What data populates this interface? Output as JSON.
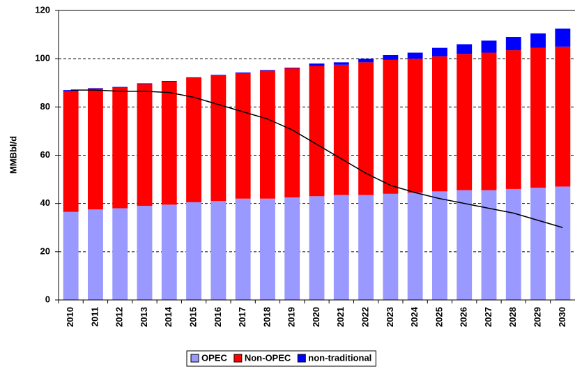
{
  "chart_data": {
    "type": "bar",
    "stacked": true,
    "y_label": "MMBbl/d",
    "categories": [
      "2010",
      "2011",
      "2012",
      "2013",
      "2014",
      "2015",
      "2016",
      "2017",
      "2018",
      "2019",
      "2020",
      "2021",
      "2022",
      "2023",
      "2024",
      "2025",
      "2026",
      "2027",
      "2028",
      "2029",
      "2030"
    ],
    "series": [
      {
        "name": "OPEC",
        "color": "#9999ff",
        "values": [
          36.5,
          37.5,
          38,
          39,
          39.5,
          40.5,
          41,
          42,
          42,
          42.5,
          43,
          43.5,
          43.5,
          44,
          44.5,
          45,
          45.5,
          45.5,
          46,
          46.5,
          47
        ]
      },
      {
        "name": "Non-OPEC",
        "color": "#ff0000",
        "values": [
          50,
          50,
          50,
          50.5,
          51,
          51.5,
          52,
          52,
          53,
          53.5,
          54,
          54,
          55,
          55.5,
          55.5,
          56,
          56.5,
          57,
          57.5,
          58,
          58
        ]
      },
      {
        "name": "non-traditional",
        "color": "#0000ff",
        "values": [
          0.5,
          0.3,
          0.3,
          0.3,
          0.3,
          0.3,
          0.3,
          0.3,
          0.3,
          0.3,
          1,
          1,
          1.5,
          2,
          2.5,
          3.5,
          4,
          5,
          5.5,
          6,
          7.5
        ]
      },
      {
        "type": "line",
        "color": "#000000",
        "values": [
          87,
          87,
          86.5,
          86.5,
          86,
          84,
          81,
          78,
          75,
          70.5,
          64.5,
          58.5,
          52.5,
          47.5,
          44.5,
          42,
          40,
          38,
          36,
          33,
          30
        ]
      }
    ],
    "ylim": [
      0,
      120
    ],
    "yticks": [
      0,
      20,
      40,
      60,
      80,
      100,
      120
    ],
    "grid": true
  }
}
